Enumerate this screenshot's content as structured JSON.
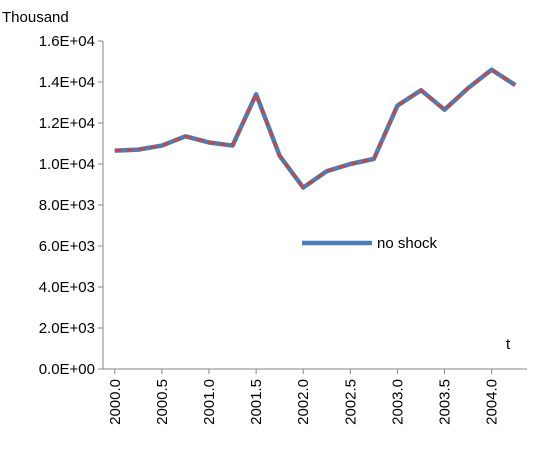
{
  "chart_data": {
    "type": "line",
    "y_label": "Thousand",
    "x_label": "t",
    "x": [
      2000.0,
      2000.25,
      2000.5,
      2000.75,
      2001.0,
      2001.25,
      2001.5,
      2001.75,
      2002.0,
      2002.25,
      2002.5,
      2002.75,
      2003.0,
      2003.25,
      2003.5,
      2003.75,
      2004.0,
      2004.25
    ],
    "series": [
      {
        "name": "no shock",
        "color": "#4a7ebb",
        "values": [
          10650,
          10700,
          10900,
          11350,
          11050,
          10900,
          13400,
          10400,
          8850,
          9650,
          10000,
          10250,
          12850,
          13600,
          12650,
          13700,
          14600,
          13850
        ]
      },
      {
        "color": "#be4b48",
        "values": [
          10650,
          10700,
          10900,
          11350,
          11050,
          10900,
          13400,
          10400,
          8850,
          9650,
          10000,
          10250,
          12850,
          13600,
          12650,
          13700,
          14600,
          13850
        ]
      }
    ],
    "xlim": [
      1999.875,
      2004.375
    ],
    "xticks": [
      {
        "value": 2000,
        "label": "2000.0"
      },
      {
        "value": 2000.5,
        "label": "2000.5"
      },
      {
        "value": 2001,
        "label": "2001.0"
      },
      {
        "value": 2001.5,
        "label": "2001.5"
      },
      {
        "value": 2002,
        "label": "2002.0"
      },
      {
        "value": 2002.5,
        "label": "2002.5"
      },
      {
        "value": 2003,
        "label": "2003.0"
      },
      {
        "value": 2003.5,
        "label": "2003.5"
      },
      {
        "value": 2004,
        "label": "2004.0"
      }
    ],
    "ylim": [
      0,
      16000
    ],
    "yticks": [
      {
        "value": 0,
        "label": "0.0E+00"
      },
      {
        "value": 2000,
        "label": "2.0E+03"
      },
      {
        "value": 4000,
        "label": "4.0E+03"
      },
      {
        "value": 6000,
        "label": "6.0E+03"
      },
      {
        "value": 8000,
        "label": "8.0E+03"
      },
      {
        "value": 10000,
        "label": "1.0E+04"
      },
      {
        "value": 12000,
        "label": "1.2E+04"
      },
      {
        "value": 14000,
        "label": "1.4E+04"
      },
      {
        "value": 16000,
        "label": "1.6E+04"
      }
    ],
    "grid": false
  }
}
